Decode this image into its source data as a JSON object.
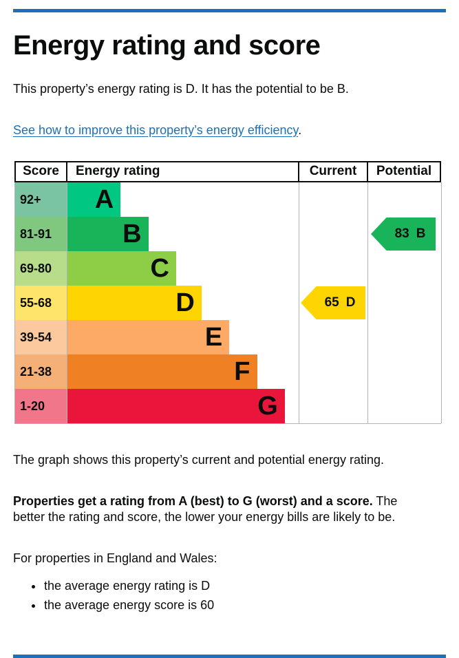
{
  "page": {
    "title": "Energy rating and score",
    "intro": "This property’s energy rating is D. It has the potential to be B.",
    "improve_link": "See how to improve this property’s energy efficiency",
    "improve_link_suffix": ".",
    "graph_caption": "The graph shows this property’s current and potential energy rating.",
    "rating_explain_bold": "Properties get a rating from A (best) to G (worst) and a score.",
    "rating_explain_rest": " The better the rating and score, the lower your energy bills are likely to be.",
    "region_heading": "For properties in England and Wales:",
    "bullets": [
      "the average energy rating is D",
      "the average energy score is 60"
    ],
    "accent_blue": "#1d70b8",
    "text_color": "#0b0c0c",
    "border_gray": "#b1b4b6"
  },
  "chart_data": {
    "type": "table",
    "title": "Energy rating and score",
    "columns": [
      "Score",
      "Energy rating",
      "Current",
      "Potential"
    ],
    "bands": [
      {
        "range": "92+",
        "letter": "A",
        "color": "#00c781",
        "score_bg": "#7ac4a2",
        "width_pct": 23
      },
      {
        "range": "81-91",
        "letter": "B",
        "color": "#19b459",
        "score_bg": "#80c880",
        "width_pct": 35
      },
      {
        "range": "69-80",
        "letter": "C",
        "color": "#8dce46",
        "score_bg": "#b7dd8a",
        "width_pct": 47
      },
      {
        "range": "55-68",
        "letter": "D",
        "color": "#ffd500",
        "score_bg": "#fde46a",
        "width_pct": 58
      },
      {
        "range": "39-54",
        "letter": "E",
        "color": "#fcaa65",
        "score_bg": "#fcc99e",
        "width_pct": 70
      },
      {
        "range": "21-38",
        "letter": "F",
        "color": "#ef8023",
        "score_bg": "#f4b076",
        "width_pct": 82
      },
      {
        "range": "1-20",
        "letter": "G",
        "color": "#e9153b",
        "score_bg": "#f17689",
        "width_pct": 94
      }
    ],
    "current": {
      "score": "65",
      "letter": "D",
      "band_index": 3,
      "color": "#ffd500"
    },
    "potential": {
      "score": "83",
      "letter": "B",
      "band_index": 1,
      "color": "#19b459"
    }
  }
}
